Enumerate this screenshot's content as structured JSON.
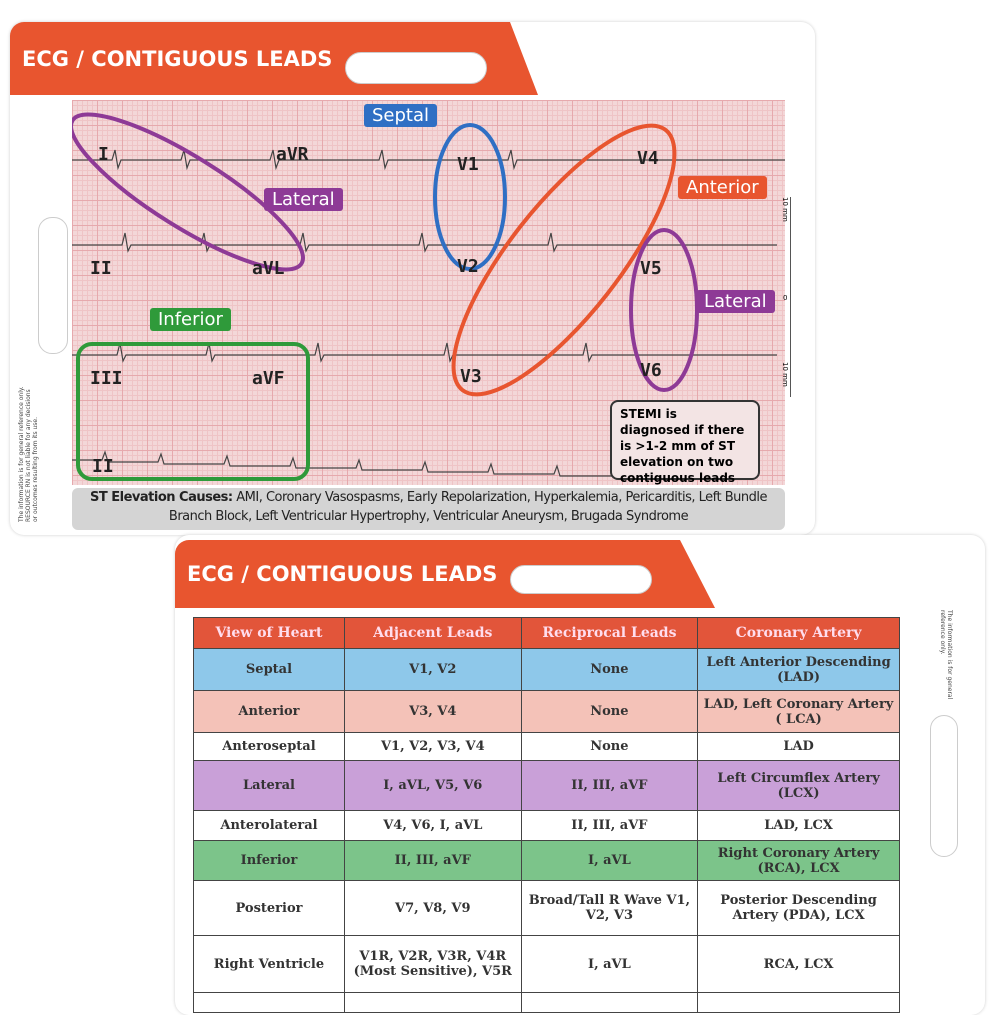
{
  "card_front": {
    "title": "ECG / CONTIGUOUS LEADS",
    "leads": [
      "I",
      "aVR",
      "V1",
      "V4",
      "II",
      "aVL",
      "V2",
      "V5",
      "III",
      "aVF",
      "V3",
      "V6",
      "II"
    ],
    "groups": {
      "septal": "Septal",
      "lateral1": "Lateral",
      "anterior": "Anterior",
      "lateral2": "Lateral",
      "inferior": "Inferior"
    },
    "group_colors": {
      "septal": "#2f6fc4",
      "lateral": "#8e3a96",
      "anterior": "#e8552f",
      "inferior": "#2f9a3a"
    },
    "stemi_note": "STEMI is diagnosed if there is >1-2 mm of ST elevation on two contiguous leads",
    "causes_label": "ST Elevation Causes:",
    "causes_text": "AMI, Coronary Vasospasms, Early Repolarization, Hyperkalemia, Pericarditis, Left Bundle Branch Block, Left Ventricular Hypertrophy, Ventricular Aneurysm, Brugada Syndrome",
    "disclaimer": "The information is for general reference only. RESOURCE RN is not liable for any decisions or outcomes resulting from its use.",
    "ruler": {
      "top": "10 mm",
      "mid": "0",
      "bottom": "10 mm"
    }
  },
  "card_back": {
    "title": "ECG / CONTIGUOUS LEADS",
    "disclaimer": "The information is for general reference only.",
    "headers": [
      "View of Heart",
      "Adjacent Leads",
      "Reciprocal Leads",
      "Coronary Artery"
    ],
    "rows": [
      {
        "view": "Septal",
        "adjacent": "V1, V2",
        "reciprocal": "None",
        "artery": "Left Anterior Descending (LAD)",
        "color": "#8ec8ea"
      },
      {
        "view": "Anterior",
        "adjacent": "V3, V4",
        "reciprocal": "None",
        "artery": "LAD, Left Coronary Artery ( LCA)",
        "color": "#f4c2b8"
      },
      {
        "view": "Anteroseptal",
        "adjacent": "V1, V2, V3, V4",
        "reciprocal": "None",
        "artery": "LAD",
        "color": "#ffffff"
      },
      {
        "view": "Lateral",
        "adjacent": "I, aVL, V5, V6",
        "reciprocal": "II, III, aVF",
        "artery": "Left Circumflex Artery (LCX)",
        "color": "#c9a0d8"
      },
      {
        "view": "Anterolateral",
        "adjacent": "V4, V6, I, aVL",
        "reciprocal": "II, III, aVF",
        "artery": "LAD, LCX",
        "color": "#ffffff"
      },
      {
        "view": "Inferior",
        "adjacent": "II, III, aVF",
        "reciprocal": "I, aVL",
        "artery": "Right Coronary Artery (RCA), LCX",
        "color": "#7cc48a"
      },
      {
        "view": "Posterior",
        "adjacent": "V7, V8, V9",
        "reciprocal": "Broad/Tall R Wave V1, V2, V3",
        "artery": "Posterior Descending Artery (PDA), LCX",
        "color": "#ffffff"
      },
      {
        "view": "Right Ventricle",
        "adjacent": "V1R, V2R, V3R, V4R (Most Sensitive), V5R",
        "reciprocal": "I, aVL",
        "artery": "RCA, LCX",
        "color": "#ffffff"
      }
    ]
  }
}
